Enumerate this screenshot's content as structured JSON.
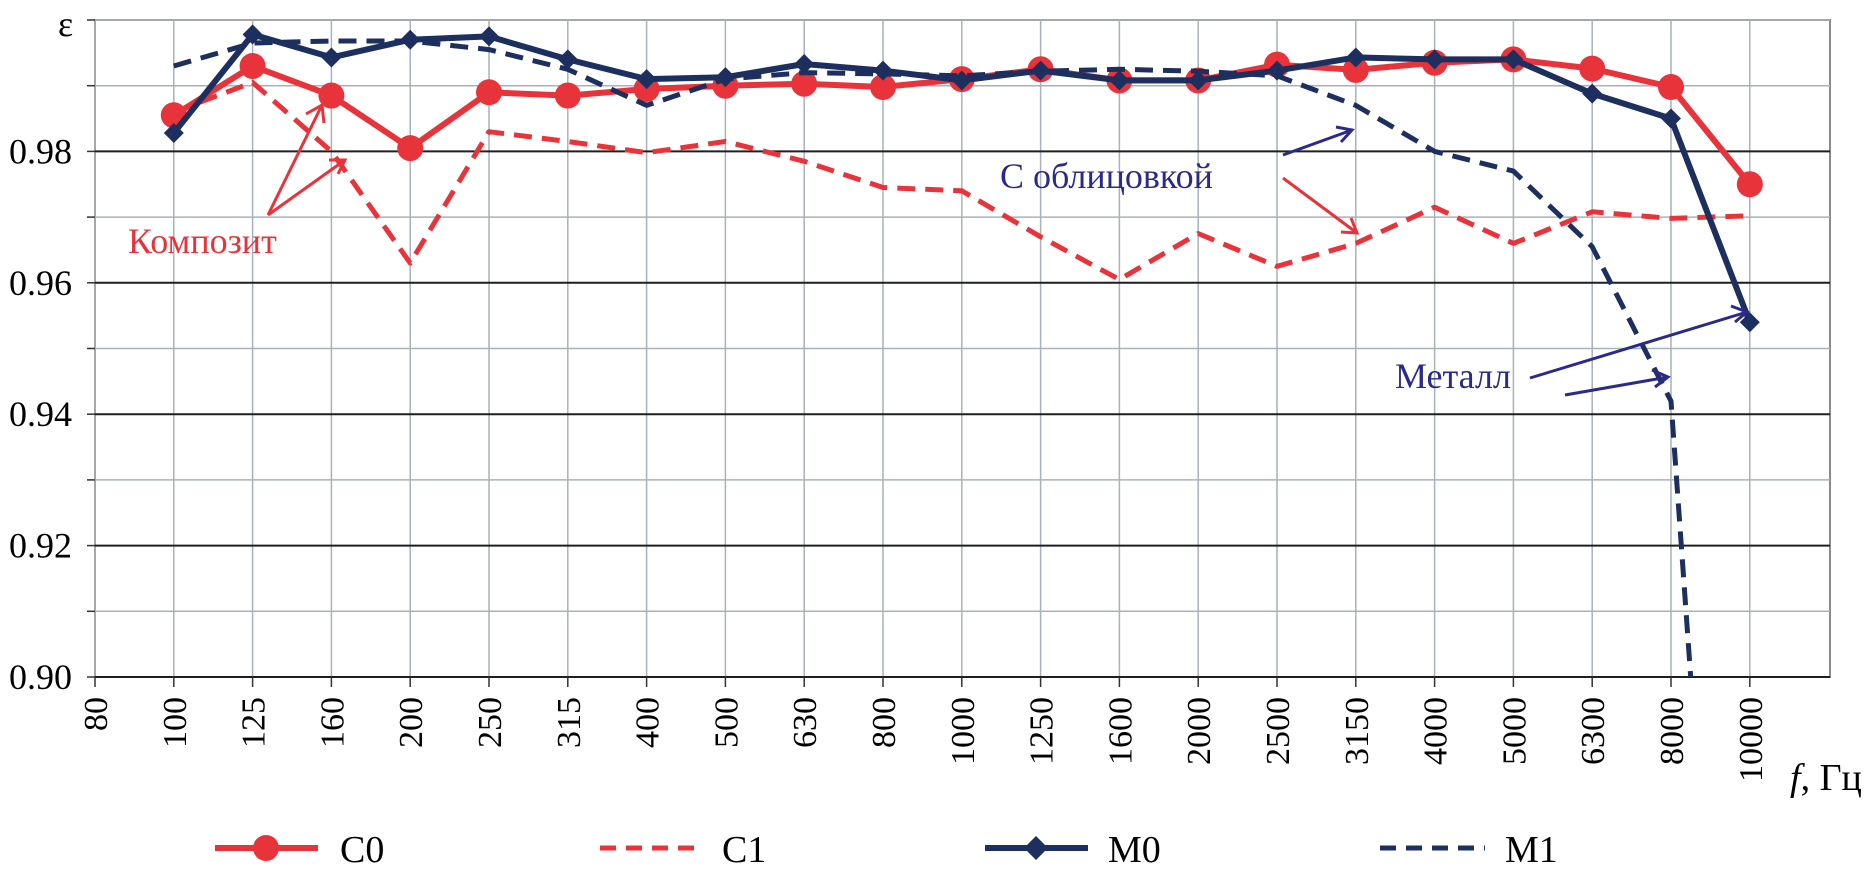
{
  "chart_data": {
    "type": "line",
    "ylabel": "ε",
    "xlabel_italic": "f",
    "xlabel_unit": ", Гц",
    "ylim": [
      0.9,
      1.0
    ],
    "y_ticks": [
      "0.90",
      "0.92",
      "0.94",
      "0.96",
      "0.98"
    ],
    "y_tick_values": [
      0.9,
      0.92,
      0.94,
      0.96,
      0.98
    ],
    "categories": [
      "80",
      "100",
      "125",
      "160",
      "200",
      "250",
      "315",
      "400",
      "500",
      "630",
      "800",
      "1000",
      "1250",
      "1600",
      "2000",
      "2500",
      "3150",
      "4000",
      "5000",
      "6300",
      "8000",
      "10000"
    ],
    "series": [
      {
        "name": "C0",
        "color": "#e8333a",
        "style": "solid-circle",
        "values": [
          null,
          0.9855,
          0.993,
          0.9885,
          0.9805,
          0.989,
          0.9885,
          0.9895,
          0.99,
          0.9903,
          0.9898,
          0.991,
          0.9925,
          0.9908,
          0.9908,
          0.9932,
          0.9924,
          0.9935,
          0.994,
          0.9926,
          0.9898,
          0.975
        ]
      },
      {
        "name": "C1",
        "color": "#e8333a",
        "style": "dashed",
        "values": [
          null,
          0.986,
          0.9905,
          0.98,
          0.963,
          0.983,
          0.9815,
          0.9798,
          0.9815,
          0.9785,
          0.9745,
          0.974,
          0.967,
          0.9605,
          0.9675,
          0.9625,
          0.966,
          0.9715,
          0.966,
          0.9708,
          0.9698,
          0.9702
        ]
      },
      {
        "name": "M0",
        "color": "#1c2f5e",
        "style": "solid-diamond",
        "values": [
          null,
          0.9828,
          0.9978,
          0.9943,
          0.997,
          0.9975,
          0.994,
          0.991,
          0.9913,
          0.9933,
          0.9923,
          0.9908,
          0.9923,
          0.9908,
          0.9908,
          0.9923,
          0.9943,
          0.994,
          0.994,
          0.9888,
          0.985,
          0.954
        ]
      },
      {
        "name": "M1",
        "color": "#1c2f5e",
        "style": "dashed",
        "values": [
          null,
          0.993,
          0.9965,
          0.9968,
          0.9968,
          0.9955,
          0.9925,
          0.987,
          0.991,
          0.992,
          0.9918,
          0.9915,
          0.9922,
          0.9925,
          0.9922,
          0.9915,
          0.987,
          0.98,
          0.977,
          0.9655,
          0.942,
          null
        ],
        "tail": {
          "x_index": 20.25,
          "y": 0.9
        }
      }
    ],
    "annotations": [
      {
        "text": "Композит",
        "color": "#e8333a"
      },
      {
        "text": "С облицовкой",
        "color": "#2a2a8a"
      },
      {
        "text": "Металл",
        "color": "#2a2a8a"
      }
    ],
    "legend": [
      "C0",
      "C1",
      "M0",
      "M1"
    ],
    "legend_position": "bottom",
    "grid": true
  }
}
